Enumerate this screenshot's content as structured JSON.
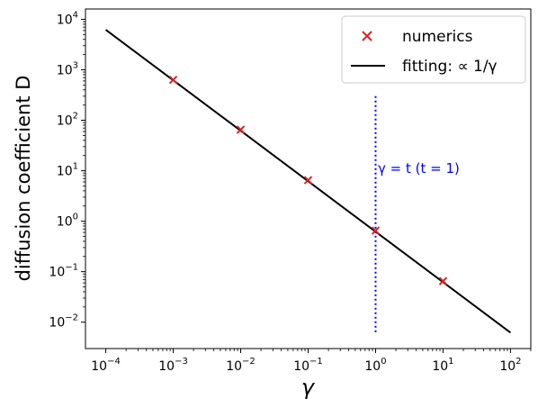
{
  "chart_data": {
    "type": "scatter",
    "xscale": "log",
    "yscale": "log",
    "xlim": [
      5e-05,
      200
    ],
    "ylim": [
      0.003,
      16000
    ],
    "xlabel": "γ",
    "ylabel": "diffusion coefficient D",
    "x_ticks": [
      {
        "base": "10",
        "exp": "−4"
      },
      {
        "base": "10",
        "exp": "−3"
      },
      {
        "base": "10",
        "exp": "−2"
      },
      {
        "base": "10",
        "exp": "−1"
      },
      {
        "base": "10",
        "exp": "0"
      },
      {
        "base": "10",
        "exp": "1"
      },
      {
        "base": "10",
        "exp": "2"
      }
    ],
    "y_ticks": [
      {
        "base": "10",
        "exp": "−2"
      },
      {
        "base": "10",
        "exp": "−1"
      },
      {
        "base": "10",
        "exp": "0"
      },
      {
        "base": "10",
        "exp": "1"
      },
      {
        "base": "10",
        "exp": "2"
      },
      {
        "base": "10",
        "exp": "3"
      },
      {
        "base": "10",
        "exp": "4"
      }
    ],
    "x_tick_values": [
      0.0001,
      0.001,
      0.01,
      0.1,
      1,
      10,
      100
    ],
    "y_tick_values": [
      0.01,
      0.1,
      1,
      10,
      100,
      1000,
      10000
    ],
    "series": [
      {
        "name": "numerics",
        "kind": "scatter",
        "marker": "x",
        "color": "#d62728",
        "points": [
          {
            "x": 0.001,
            "y": 630
          },
          {
            "x": 0.01,
            "y": 65
          },
          {
            "x": 0.1,
            "y": 6.5
          },
          {
            "x": 1,
            "y": 0.65
          },
          {
            "x": 10,
            "y": 0.065
          }
        ]
      },
      {
        "name": "fitting: ∝ 1/γ",
        "kind": "line",
        "color": "#000000",
        "points": [
          {
            "x": 0.0001,
            "y": 6200
          },
          {
            "x": 100,
            "y": 0.0062
          }
        ]
      }
    ],
    "vline": {
      "x": 1,
      "y_from": 0.006,
      "y_to": 300,
      "color": "#0000ff",
      "style": "dotted",
      "label": "γ = t (t = 1)",
      "label_at": {
        "x": 1.08,
        "y": 11
      }
    },
    "legend": {
      "position": "top-right"
    },
    "grid": false
  }
}
